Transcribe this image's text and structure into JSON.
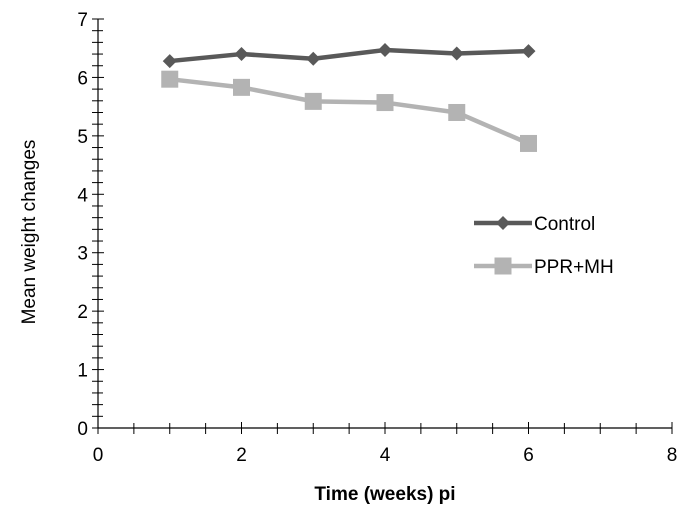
{
  "chart_data": {
    "type": "line",
    "title": "",
    "xlabel": "Time (weeks) pi",
    "ylabel": "Mean weight changes",
    "xlim": [
      0,
      8
    ],
    "ylim": [
      0,
      7
    ],
    "x_ticks": [
      "0",
      "2",
      "4",
      "6",
      "8"
    ],
    "y_ticks": [
      "0",
      "1",
      "2",
      "3",
      "4",
      "5",
      "6",
      "7"
    ],
    "x": [
      1,
      2,
      3,
      4,
      5,
      6
    ],
    "series": [
      {
        "name": "Control",
        "values": [
          6.28,
          6.4,
          6.32,
          6.47,
          6.41,
          6.45
        ],
        "color": "#595959",
        "marker": "diamond"
      },
      {
        "name": "PPR+MH",
        "values": [
          5.97,
          5.83,
          5.59,
          5.57,
          5.4,
          4.87
        ],
        "color": "#b3b3b3",
        "marker": "square"
      }
    ],
    "legend_position": "right",
    "grid": false
  }
}
